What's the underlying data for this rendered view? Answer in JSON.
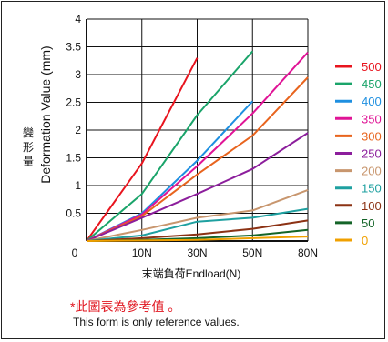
{
  "chart_data": {
    "type": "line",
    "title": "",
    "ylabel": "Deformation Value  (mm)",
    "ylabel_cn": "變形量",
    "xlabel": "末端負荷Endload(N)",
    "categories": [
      "0",
      "10N",
      "30N",
      "50N",
      "80N"
    ],
    "ylim": [
      0,
      4
    ],
    "yticks": [
      "0",
      "0.5",
      "1",
      "1.5",
      "2",
      "2.5",
      "3",
      "3.5",
      "4"
    ],
    "grid": true,
    "legend_position": "right",
    "series": [
      {
        "name": "500",
        "color": "#e8141e",
        "values": [
          0,
          1.4,
          3.3,
          null,
          null
        ]
      },
      {
        "name": "450",
        "color": "#1aa46a",
        "values": [
          0,
          0.85,
          2.27,
          3.42,
          null
        ]
      },
      {
        "name": "400",
        "color": "#1e8fe0",
        "values": [
          0,
          0.5,
          1.45,
          2.52,
          null
        ]
      },
      {
        "name": "350",
        "color": "#e01496",
        "values": [
          0,
          0.48,
          1.35,
          2.3,
          3.4
        ]
      },
      {
        "name": "300",
        "color": "#e8641e",
        "values": [
          0,
          0.45,
          1.2,
          1.9,
          2.95
        ]
      },
      {
        "name": "250",
        "color": "#8c1e9c",
        "values": [
          0,
          0.42,
          0.85,
          1.3,
          1.95
        ]
      },
      {
        "name": "200",
        "color": "#c8966e",
        "values": [
          0,
          0.2,
          0.42,
          0.55,
          0.92
        ]
      },
      {
        "name": "150",
        "color": "#1ea0a0",
        "values": [
          0,
          0.1,
          0.35,
          0.42,
          0.58
        ]
      },
      {
        "name": "100",
        "color": "#8c3214",
        "values": [
          0,
          0.05,
          0.12,
          0.22,
          0.37
        ]
      },
      {
        "name": "50",
        "color": "#146428",
        "values": [
          0,
          0.02,
          0.05,
          0.1,
          0.2
        ]
      },
      {
        "name": "0",
        "color": "#f0a000",
        "values": [
          0,
          0.01,
          0.02,
          0.05,
          0.08
        ]
      }
    ]
  },
  "notes": {
    "cn": "*此圖表為參考值 。",
    "en": "This form is only reference values."
  }
}
